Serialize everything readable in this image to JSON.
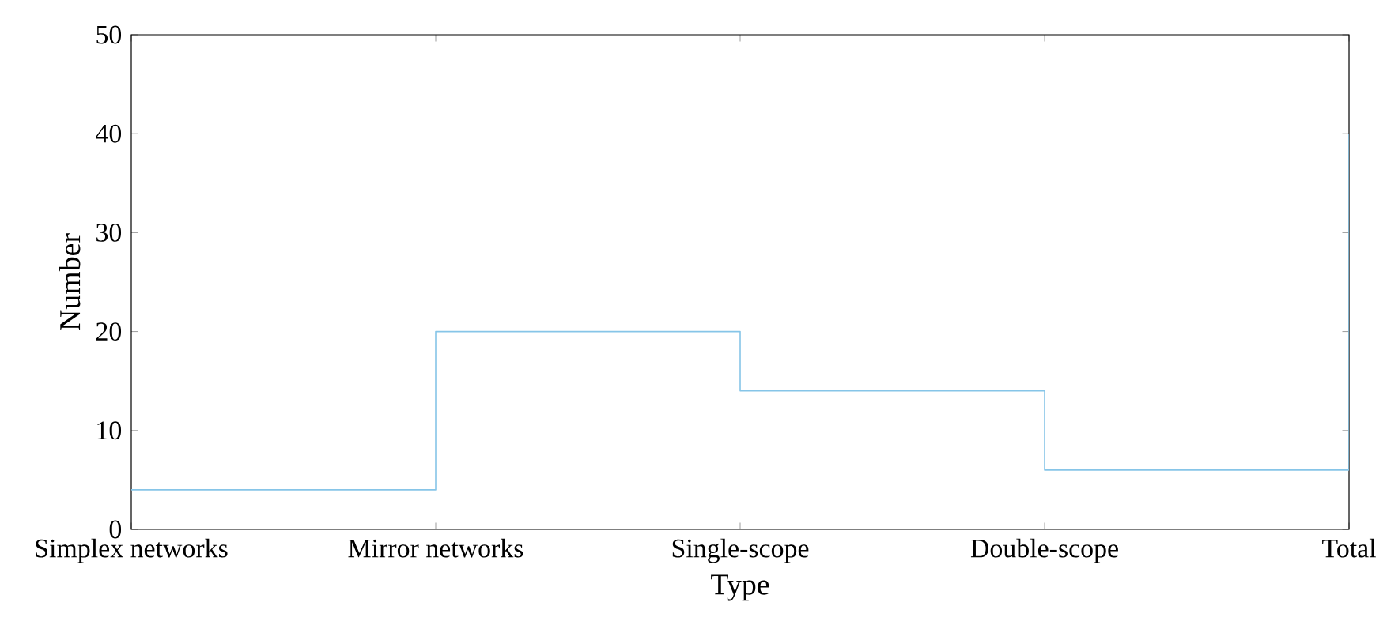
{
  "chart_data": {
    "type": "step",
    "xlabel": "Type",
    "ylabel": "Number",
    "categories": [
      "Simplex networks",
      "Mirror networks",
      "Single-scope",
      "Double-scope",
      "Total"
    ],
    "values": [
      4,
      20,
      14,
      6,
      40
    ],
    "color": "#86c5e8",
    "ylim": [
      0,
      50
    ],
    "yticks": [
      0,
      10,
      20,
      30,
      40,
      50
    ]
  }
}
